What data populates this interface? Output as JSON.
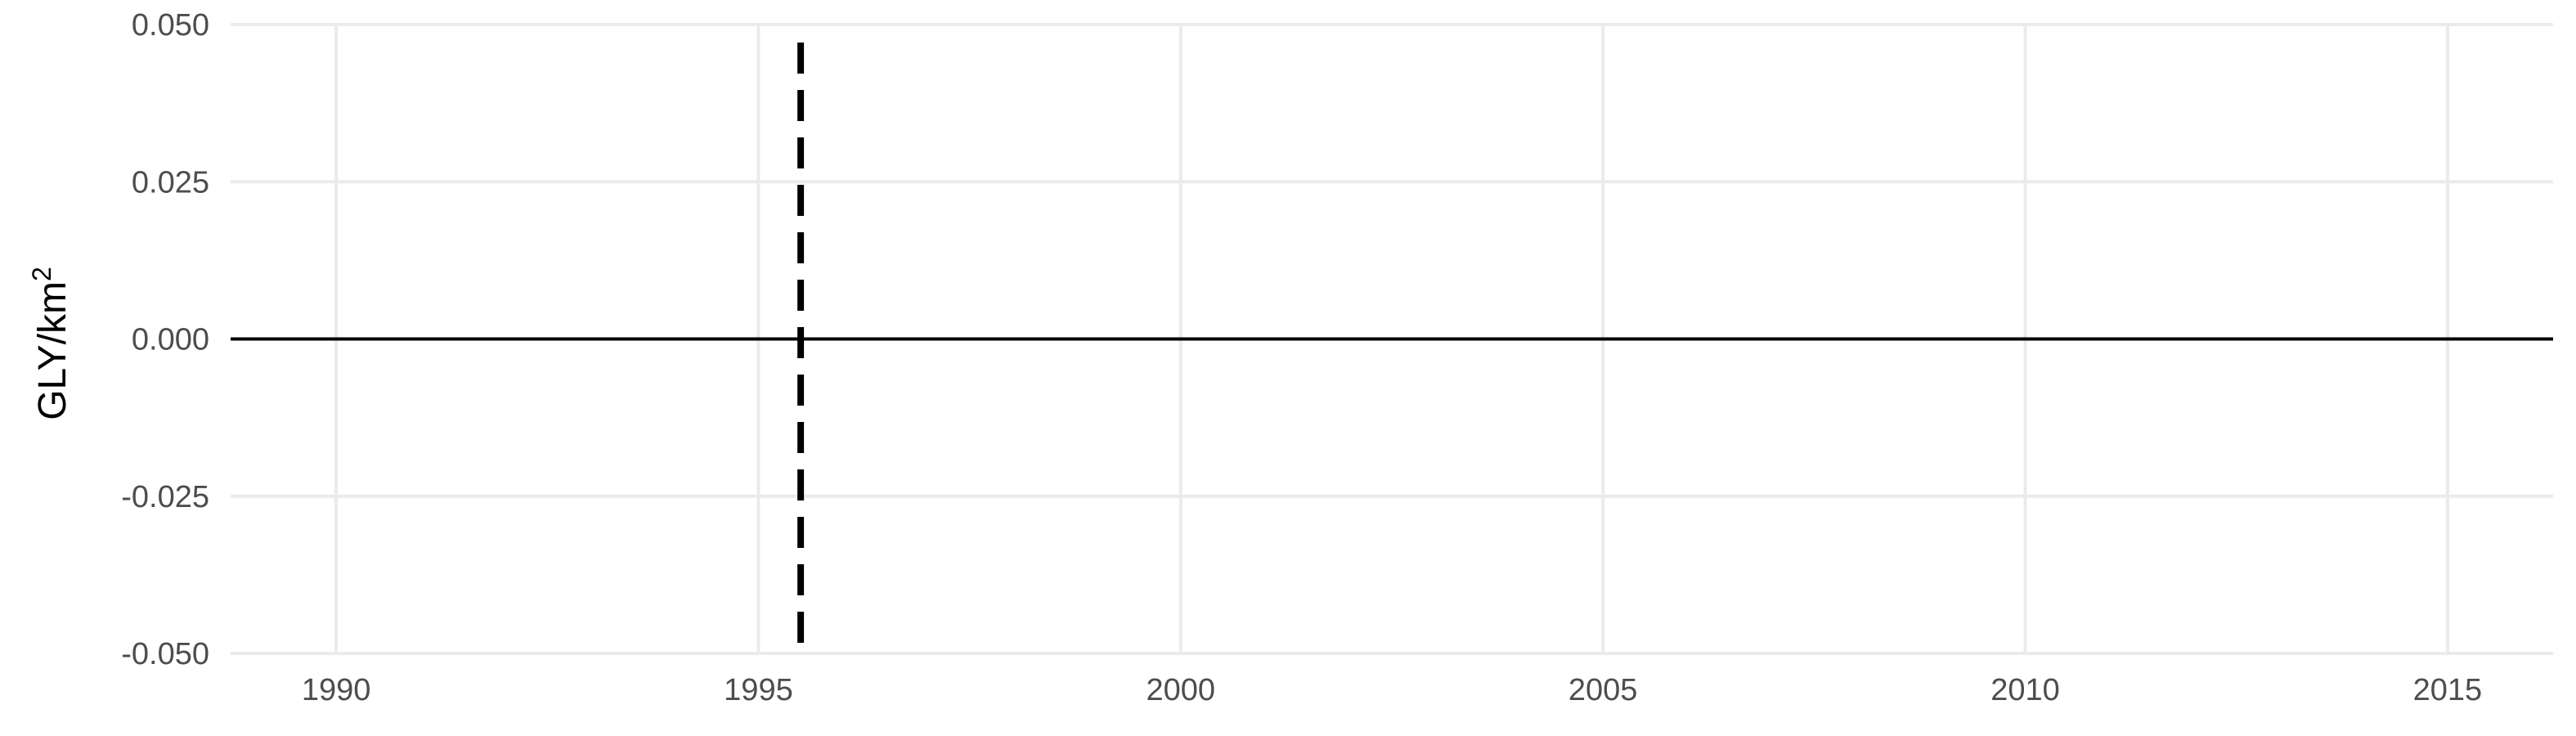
{
  "chart_data": {
    "type": "line",
    "title": "",
    "xlabel": "",
    "ylabel": "GLY/km",
    "ylabel_superscript": "2",
    "xlim": [
      1988.75,
      2016.25
    ],
    "ylim": [
      -0.05,
      0.05
    ],
    "x_ticks": [
      1990,
      1995,
      2000,
      2005,
      2010,
      2015
    ],
    "y_ticks": [
      -0.05,
      -0.025,
      0,
      0.025,
      0.05
    ],
    "x_tick_labels": [
      "1990",
      "1995",
      "2000",
      "2005",
      "2010",
      "2015"
    ],
    "y_tick_labels": [
      "-0.050",
      "-0.025",
      "0.000",
      "0.025",
      "0.050"
    ],
    "grid": true,
    "horizontal_line": {
      "y": 0,
      "style": "solid",
      "color": "#000000"
    },
    "vertical_line": {
      "x": 1995.5,
      "style": "dashed",
      "color": "#000000"
    },
    "series": []
  }
}
